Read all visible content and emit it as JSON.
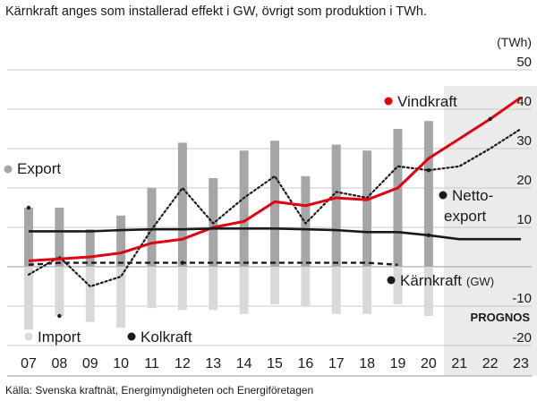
{
  "chart_data": {
    "type": "bar",
    "title": "Kärnkraft anges som installerad effekt i GW, övrigt som produktion i TWh.",
    "unit_label": "(TWh)",
    "source": "Källa: Svenska kraftnät, Energimyndigheten och Energiföretagen",
    "forecast_label": "PROGNOS",
    "categories": [
      "07",
      "08",
      "09",
      "10",
      "11",
      "12",
      "13",
      "14",
      "15",
      "16",
      "17",
      "18",
      "19",
      "20",
      "21",
      "22",
      "23"
    ],
    "y_ticks": [
      50,
      40,
      30,
      20,
      10,
      -10,
      -20
    ],
    "ylim": [
      -25,
      53
    ],
    "forecast_from": "21",
    "series": [
      {
        "name": "Export",
        "type": "bar",
        "color": "#a6a6a6",
        "values": [
          15,
          15,
          9.5,
          13,
          20,
          31.5,
          22.5,
          29.5,
          32,
          23,
          31,
          29.5,
          35,
          37,
          null,
          null,
          null
        ]
      },
      {
        "name": "Import",
        "type": "bar",
        "color": "#d9d9d9",
        "values": [
          -16,
          -12.5,
          -14,
          -15.5,
          -10.5,
          -11,
          -11,
          -12,
          -9.5,
          -10,
          -12,
          -12,
          -9.5,
          -12.5,
          null,
          null,
          null
        ]
      },
      {
        "name": "Vindkraft",
        "type": "line",
        "color": "#e3000f",
        "values": [
          1.5,
          2,
          2.5,
          3.5,
          6,
          7,
          10,
          11.5,
          16.5,
          15.5,
          17.5,
          17,
          20,
          27.5,
          32.5,
          37.5,
          43
        ]
      },
      {
        "name": "Netto-export",
        "type": "dotted",
        "color": "#1a1a1a",
        "values": [
          -2,
          2.5,
          -5,
          -2.5,
          9.5,
          20,
          11,
          17.5,
          23,
          11,
          19,
          17.5,
          25.5,
          24.5,
          25.5,
          30,
          35
        ]
      },
      {
        "name": "Kärnkraft (GW)",
        "type": "line",
        "color": "#1a1a1a",
        "values": [
          9,
          9,
          9,
          9.3,
          9.5,
          9.5,
          9.7,
          9.7,
          9.7,
          9.5,
          9.3,
          8.8,
          8.8,
          8,
          7,
          7,
          7
        ]
      },
      {
        "name": "Kolkraft",
        "type": "dashed",
        "color": "#1a1a1a",
        "values": [
          0.5,
          1,
          1,
          1,
          1,
          1,
          1,
          1,
          1,
          1,
          1,
          1,
          0.5,
          null,
          null,
          null,
          null
        ]
      }
    ],
    "legend": {
      "export": "Export",
      "import": "Import",
      "vindkraft": "Vindkraft",
      "kolkraft": "Kolkraft",
      "netto_1": "Netto-",
      "netto_2": "export",
      "karnkraft": "Kärnkraft",
      "karnkraft_unit": "(GW)"
    }
  }
}
